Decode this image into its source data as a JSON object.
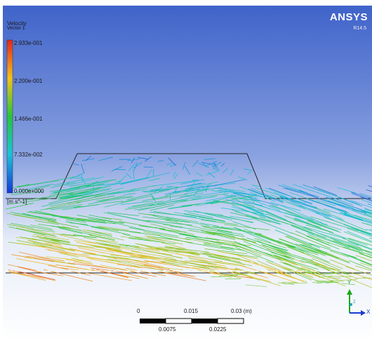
{
  "header": {
    "title": "Velocity",
    "subtitle": "Vector 1",
    "brand": "ANSYS",
    "version": "R14.5"
  },
  "legend": {
    "max": "2.933e-001",
    "v2": "2.200e-001",
    "v3": "1.466e-001",
    "v4": "7.332e-002",
    "min": "0.000e+000",
    "unit": "[m s^-1]"
  },
  "scale_bar": {
    "top_labels": [
      "0",
      "0.015",
      "0.03  (m)"
    ],
    "bottom_labels": [
      "0.0075",
      "0.0225"
    ]
  },
  "triad": {
    "y": "Y",
    "x": "X",
    "z": "Z"
  },
  "colors": {
    "bg_top": "#3f63c9",
    "bg_bottom": "#ffffff",
    "high": "#e3261c",
    "mid": "#26c63a",
    "low": "#1437d8"
  }
}
